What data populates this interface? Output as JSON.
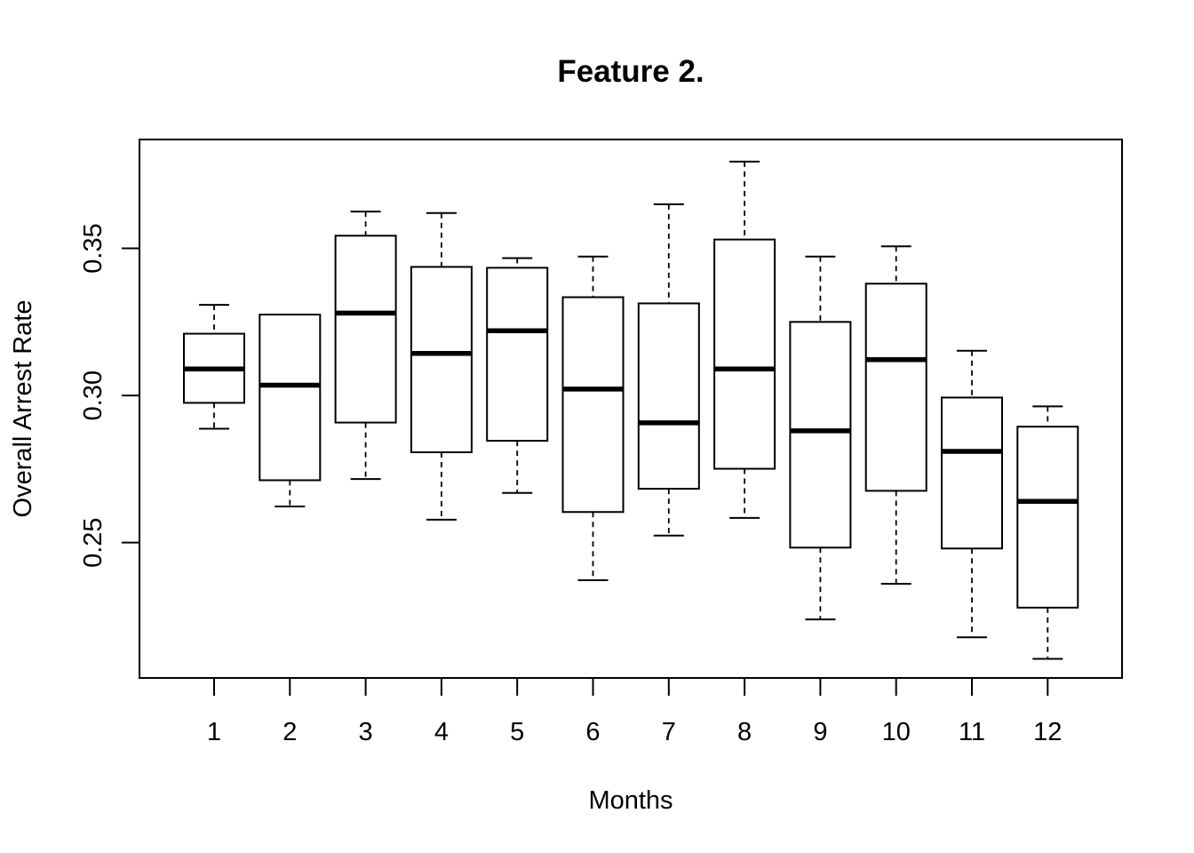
{
  "chart_data": {
    "type": "boxplot",
    "title": "Feature 2.",
    "xlabel": "Months",
    "ylabel": "Overall Arrest Rate",
    "categories": [
      "1",
      "2",
      "3",
      "4",
      "5",
      "6",
      "7",
      "8",
      "9",
      "10",
      "11",
      "12"
    ],
    "yticks": [
      "0.25",
      "0.30",
      "0.35"
    ],
    "ytick_values": [
      0.25,
      0.3,
      0.35
    ],
    "ylim": [
      0.204,
      0.387
    ],
    "grid": false,
    "boxes": [
      {
        "category": "1",
        "whisker_low": 0.2887,
        "q1": 0.2975,
        "median": 0.309,
        "q3": 0.321,
        "whisker_high": 0.3308
      },
      {
        "category": "2",
        "whisker_low": 0.2623,
        "q1": 0.2712,
        "median": 0.3035,
        "q3": 0.3275,
        "whisker_high": 0.3275
      },
      {
        "category": "3",
        "whisker_low": 0.2716,
        "q1": 0.2908,
        "median": 0.328,
        "q3": 0.3543,
        "whisker_high": 0.3625
      },
      {
        "category": "4",
        "whisker_low": 0.2578,
        "q1": 0.2807,
        "median": 0.3143,
        "q3": 0.3437,
        "whisker_high": 0.362
      },
      {
        "category": "5",
        "whisker_low": 0.2669,
        "q1": 0.2846,
        "median": 0.322,
        "q3": 0.3434,
        "whisker_high": 0.3467
      },
      {
        "category": "6",
        "whisker_low": 0.2372,
        "q1": 0.2604,
        "median": 0.3022,
        "q3": 0.3334,
        "whisker_high": 0.3472
      },
      {
        "category": "7",
        "whisker_low": 0.2524,
        "q1": 0.2683,
        "median": 0.2907,
        "q3": 0.3313,
        "whisker_high": 0.365
      },
      {
        "category": "8",
        "whisker_low": 0.2584,
        "q1": 0.2751,
        "median": 0.309,
        "q3": 0.353,
        "whisker_high": 0.3795
      },
      {
        "category": "9",
        "whisker_low": 0.2239,
        "q1": 0.2483,
        "median": 0.288,
        "q3": 0.325,
        "whisker_high": 0.3472
      },
      {
        "category": "10",
        "whisker_low": 0.236,
        "q1": 0.2676,
        "median": 0.3122,
        "q3": 0.338,
        "whisker_high": 0.3507
      },
      {
        "category": "11",
        "whisker_low": 0.2178,
        "q1": 0.248,
        "median": 0.281,
        "q3": 0.2993,
        "whisker_high": 0.3152
      },
      {
        "category": "12",
        "whisker_low": 0.2105,
        "q1": 0.2279,
        "median": 0.264,
        "q3": 0.2894,
        "whisker_high": 0.2963
      }
    ]
  }
}
